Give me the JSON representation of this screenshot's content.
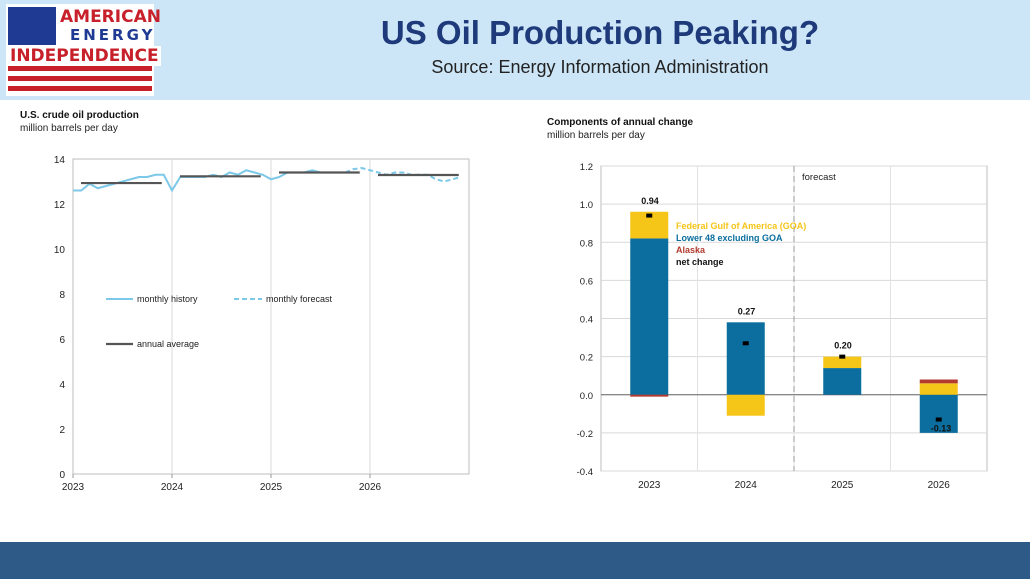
{
  "header": {
    "title": "US Oil Production Peaking?",
    "source": "Source: Energy Information Administration",
    "logo": {
      "line1": "AMERICAN",
      "line2": "ENERGY",
      "line3": "INDEPENDENCE",
      "flag_color": "#1f3a93",
      "stripe_color": "#c8202a"
    }
  },
  "colors": {
    "header_bg": "#cce6f7",
    "footer_bg": "#2e5a88",
    "history": "#7cc8e8",
    "annual": "#555555",
    "goa": "#f5c518",
    "lower48": "#0b6e9e",
    "alaska": "#b33a2f",
    "net": "#000000"
  },
  "chart_data": [
    {
      "type": "line",
      "title": "U.S. crude oil production",
      "ylabel": "million barrels per day",
      "ylim": [
        0,
        14
      ],
      "yticks": [
        0,
        2,
        4,
        6,
        8,
        10,
        12,
        14
      ],
      "x_tick_labels": [
        "2023",
        "2024",
        "2025",
        "2026"
      ],
      "xlim": [
        "2023-01",
        "2026-12"
      ],
      "series": [
        {
          "name": "monthly history",
          "style": "solid",
          "x": [
            "2023-01",
            "2023-02",
            "2023-03",
            "2023-04",
            "2023-05",
            "2023-06",
            "2023-07",
            "2023-08",
            "2023-09",
            "2023-10",
            "2023-11",
            "2023-12",
            "2024-01",
            "2024-02",
            "2024-03",
            "2024-04",
            "2024-05",
            "2024-06",
            "2024-07",
            "2024-08",
            "2024-09",
            "2024-10",
            "2024-11",
            "2024-12",
            "2025-01",
            "2025-02",
            "2025-03",
            "2025-04",
            "2025-05",
            "2025-06",
            "2025-07",
            "2025-08",
            "2025-09",
            "2025-10"
          ],
          "values": [
            12.6,
            12.6,
            12.9,
            12.7,
            12.8,
            12.9,
            13.0,
            13.1,
            13.2,
            13.2,
            13.3,
            13.3,
            12.6,
            13.2,
            13.2,
            13.2,
            13.2,
            13.3,
            13.2,
            13.4,
            13.3,
            13.5,
            13.4,
            13.3,
            13.1,
            13.2,
            13.4,
            13.4,
            13.4,
            13.5,
            13.4,
            13.4,
            13.4,
            13.4
          ]
        },
        {
          "name": "monthly forecast",
          "style": "dashed",
          "x": [
            "2025-10",
            "2025-11",
            "2025-12",
            "2026-01",
            "2026-02",
            "2026-03",
            "2026-04",
            "2026-05",
            "2026-06",
            "2026-07",
            "2026-08",
            "2026-09",
            "2026-10",
            "2026-11",
            "2026-12"
          ],
          "values": [
            13.4,
            13.55,
            13.6,
            13.5,
            13.4,
            13.3,
            13.4,
            13.4,
            13.3,
            13.3,
            13.3,
            13.1,
            13.0,
            13.1,
            13.2
          ]
        },
        {
          "name": "annual average",
          "style": "step",
          "years": [
            "2023",
            "2024",
            "2025",
            "2026"
          ],
          "values": [
            12.93,
            13.23,
            13.4,
            13.29
          ]
        }
      ]
    },
    {
      "type": "bar",
      "stacked": true,
      "title": "Components of annual change",
      "ylabel": "million barrels per day",
      "ylim": [
        -0.4,
        1.2
      ],
      "yticks": [
        -0.4,
        -0.2,
        0.0,
        0.2,
        0.4,
        0.6,
        0.8,
        1.0,
        1.2
      ],
      "categories": [
        "2023",
        "2024",
        "2025",
        "2026"
      ],
      "annotation": "forecast",
      "series": [
        {
          "name": "Federal Gulf  of America (GOA)",
          "values": [
            0.14,
            -0.11,
            0.06,
            0.06
          ]
        },
        {
          "name": "Lower 48 excluding GOA",
          "values": [
            0.82,
            0.38,
            0.14,
            -0.2
          ]
        },
        {
          "name": "Alaska",
          "values": [
            -0.01,
            0.0,
            0.0,
            0.02
          ]
        }
      ],
      "net_change": [
        0.94,
        0.27,
        0.2,
        -0.13
      ],
      "net_labels": [
        "0.94",
        "0.27",
        "0.20",
        "-0.13"
      ],
      "net_label": "net change",
      "grid": true
    }
  ]
}
